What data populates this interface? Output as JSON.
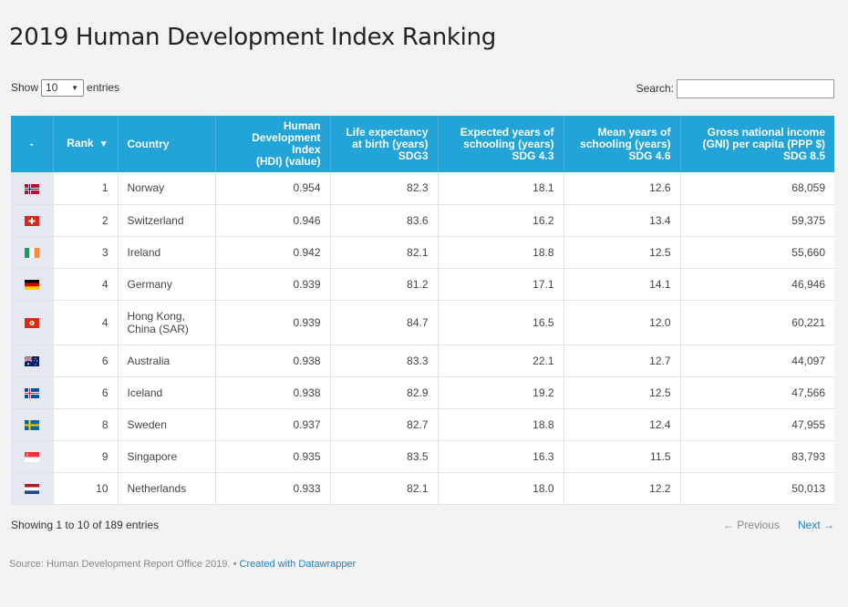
{
  "title": "2019 Human Development Index Ranking",
  "controls": {
    "show_label": "Show",
    "entries_value": "10",
    "entries_label": "entries",
    "search_label": "Search:",
    "search_value": ""
  },
  "table": {
    "headers": {
      "dash": "-",
      "rank": "Rank",
      "country": "Country",
      "hdi": [
        "Human",
        "Development Index",
        "(HDI) (value)"
      ],
      "life": [
        "Life expectancy",
        "at birth (years)",
        "SDG3"
      ],
      "expected": [
        "Expected years of",
        "schooling (years)",
        "SDG 4.3"
      ],
      "mean": [
        "Mean years of",
        "schooling (years)",
        "SDG 4.6"
      ],
      "gni": [
        "Gross national income",
        "(GNI) per capita (PPP $)",
        "SDG 8.5"
      ]
    },
    "rows": [
      {
        "flag": "norway-flag",
        "rank": "1",
        "country": [
          "Norway"
        ],
        "hdi": "0.954",
        "life": "82.3",
        "expected": "18.1",
        "mean": "12.6",
        "gni": "68,059"
      },
      {
        "flag": "switzerland-flag",
        "rank": "2",
        "country": [
          "Switzerland"
        ],
        "hdi": "0.946",
        "life": "83.6",
        "expected": "16.2",
        "mean": "13.4",
        "gni": "59,375"
      },
      {
        "flag": "ireland-flag",
        "rank": "3",
        "country": [
          "Ireland"
        ],
        "hdi": "0.942",
        "life": "82.1",
        "expected": "18.8",
        "mean": "12.5",
        "gni": "55,660"
      },
      {
        "flag": "germany-flag",
        "rank": "4",
        "country": [
          "Germany"
        ],
        "hdi": "0.939",
        "life": "81.2",
        "expected": "17.1",
        "mean": "14.1",
        "gni": "46,946"
      },
      {
        "flag": "hong-kong-flag",
        "rank": "4",
        "country": [
          "Hong Kong,",
          "China (SAR)"
        ],
        "hdi": "0.939",
        "life": "84.7",
        "expected": "16.5",
        "mean": "12.0",
        "gni": "60,221"
      },
      {
        "flag": "australia-flag",
        "rank": "6",
        "country": [
          "Australia"
        ],
        "hdi": "0.938",
        "life": "83.3",
        "expected": "22.1",
        "mean": "12.7",
        "gni": "44,097"
      },
      {
        "flag": "iceland-flag",
        "rank": "6",
        "country": [
          "Iceland"
        ],
        "hdi": "0.938",
        "life": "82.9",
        "expected": "19.2",
        "mean": "12.5",
        "gni": "47,566"
      },
      {
        "flag": "sweden-flag",
        "rank": "8",
        "country": [
          "Sweden"
        ],
        "hdi": "0.937",
        "life": "82.7",
        "expected": "18.8",
        "mean": "12.4",
        "gni": "47,955"
      },
      {
        "flag": "singapore-flag",
        "rank": "9",
        "country": [
          "Singapore"
        ],
        "hdi": "0.935",
        "life": "83.5",
        "expected": "16.3",
        "mean": "11.5",
        "gni": "83,793"
      },
      {
        "flag": "netherlands-flag",
        "rank": "10",
        "country": [
          "Netherlands"
        ],
        "hdi": "0.933",
        "life": "82.1",
        "expected": "18.0",
        "mean": "12.2",
        "gni": "50,013"
      }
    ]
  },
  "footer": {
    "info": "Showing 1 to 10 of 189 entries",
    "previous": "← Previous",
    "next": "Next →"
  },
  "source": {
    "text": "Source: Human Development Report Office 2019. • ",
    "link": "Created with Datawrapper"
  },
  "colors": {
    "header_bg": "#22a4d8",
    "link": "#1d81c4",
    "flag_col_bg": "#e6e9f2"
  }
}
